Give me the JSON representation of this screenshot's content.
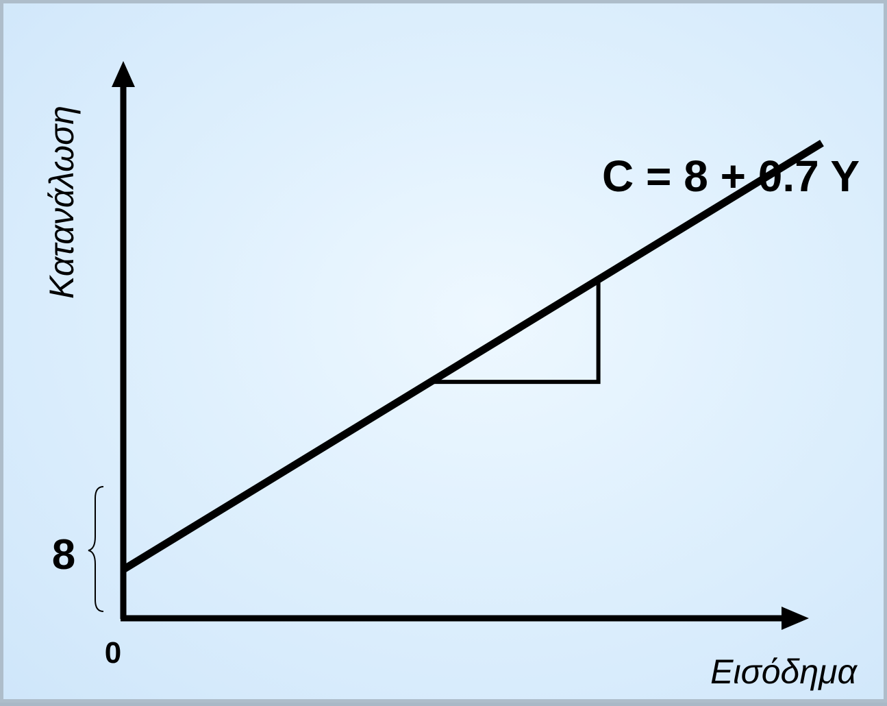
{
  "chart_data": {
    "type": "line",
    "xlabel": "Εισόδημα",
    "ylabel": "Κατανάλωση",
    "origin_label": "0",
    "intercept_label": "8",
    "equation": "C = 8 + 0.7 Y",
    "series": [
      {
        "intercept": 8,
        "slope": 0.7
      }
    ],
    "xlim": [
      0,
      100
    ],
    "ylim": [
      0,
      90
    ],
    "slope_triangle": {
      "x_from": 44,
      "x_to": 68
    },
    "grid": false,
    "legend": "none",
    "colors": {
      "line": "#000000",
      "background": "#dff0fd",
      "border": "#aebdca"
    }
  }
}
